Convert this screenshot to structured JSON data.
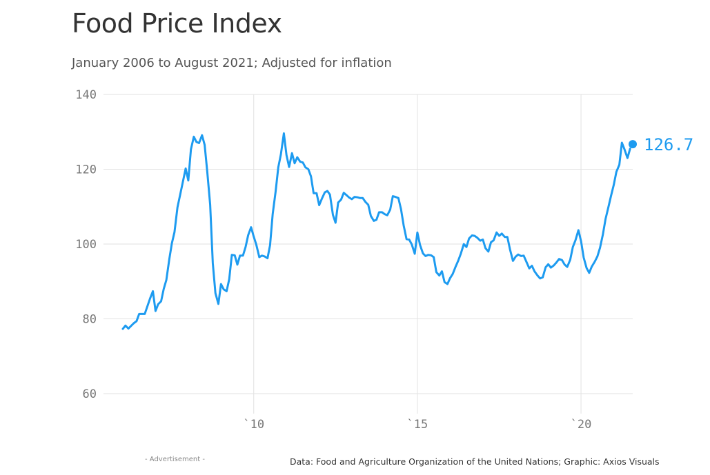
{
  "chart_data": {
    "type": "line",
    "title": "Food Price Index",
    "subtitle": "January 2006 to August 2021; Adjusted for inflation",
    "xlabel": "",
    "ylabel": "",
    "xlim": [
      2006,
      2021.75
    ],
    "ylim": [
      55,
      140
    ],
    "grid": true,
    "y_ticks": [
      60,
      80,
      100,
      120,
      140
    ],
    "x_ticks": [
      {
        "value": 2010,
        "label": "`10"
      },
      {
        "value": 2015,
        "label": "`15"
      },
      {
        "value": 2020,
        "label": "`20"
      }
    ],
    "color": "#1d9bf0",
    "end_label": "126.7",
    "series": [
      {
        "points": [
          [
            2006.0,
            77.3
          ],
          [
            2006.08,
            78.2
          ],
          [
            2006.17,
            77.4
          ],
          [
            2006.33,
            78.8
          ],
          [
            2006.42,
            79.4
          ],
          [
            2006.5,
            81.3
          ],
          [
            2006.67,
            81.3
          ],
          [
            2006.83,
            85.4
          ],
          [
            2006.92,
            87.4
          ],
          [
            2007.0,
            82.1
          ],
          [
            2007.08,
            83.9
          ],
          [
            2007.17,
            84.7
          ],
          [
            2007.25,
            88.0
          ],
          [
            2007.33,
            90.4
          ],
          [
            2007.42,
            96.0
          ],
          [
            2007.5,
            100.2
          ],
          [
            2007.58,
            103.2
          ],
          [
            2007.67,
            109.8
          ],
          [
            2007.75,
            113.1
          ],
          [
            2007.92,
            120.2
          ],
          [
            2008.0,
            117.0
          ],
          [
            2008.08,
            125.3
          ],
          [
            2008.17,
            128.7
          ],
          [
            2008.25,
            127.3
          ],
          [
            2008.33,
            127.0
          ],
          [
            2008.42,
            129.1
          ],
          [
            2008.5,
            126.5
          ],
          [
            2008.58,
            119.3
          ],
          [
            2008.67,
            110.5
          ],
          [
            2008.75,
            94.9
          ],
          [
            2008.83,
            86.9
          ],
          [
            2008.92,
            84.0
          ],
          [
            2009.0,
            89.3
          ],
          [
            2009.08,
            87.9
          ],
          [
            2009.17,
            87.4
          ],
          [
            2009.25,
            90.6
          ],
          [
            2009.33,
            97.1
          ],
          [
            2009.42,
            97.0
          ],
          [
            2009.5,
            94.5
          ],
          [
            2009.58,
            96.9
          ],
          [
            2009.67,
            96.9
          ],
          [
            2009.75,
            99.2
          ],
          [
            2009.83,
            102.4
          ],
          [
            2009.92,
            104.5
          ],
          [
            2010.0,
            102.0
          ],
          [
            2010.08,
            99.8
          ],
          [
            2010.17,
            96.5
          ],
          [
            2010.25,
            96.9
          ],
          [
            2010.33,
            96.7
          ],
          [
            2010.42,
            96.2
          ],
          [
            2010.5,
            99.7
          ],
          [
            2010.58,
            108.0
          ],
          [
            2010.67,
            114.1
          ],
          [
            2010.75,
            120.5
          ],
          [
            2010.83,
            124.0
          ],
          [
            2010.92,
            129.6
          ],
          [
            2011.0,
            123.8
          ],
          [
            2011.08,
            120.6
          ],
          [
            2011.17,
            124.3
          ],
          [
            2011.25,
            121.6
          ],
          [
            2011.33,
            123.2
          ],
          [
            2011.42,
            122.0
          ],
          [
            2011.5,
            121.8
          ],
          [
            2011.58,
            120.5
          ],
          [
            2011.67,
            120.0
          ],
          [
            2011.75,
            118.1
          ],
          [
            2011.83,
            113.6
          ],
          [
            2011.92,
            113.6
          ],
          [
            2012.0,
            110.4
          ],
          [
            2012.08,
            112.1
          ],
          [
            2012.17,
            113.8
          ],
          [
            2012.25,
            114.2
          ],
          [
            2012.33,
            113.2
          ],
          [
            2012.42,
            107.8
          ],
          [
            2012.5,
            105.7
          ],
          [
            2012.58,
            111.1
          ],
          [
            2012.67,
            111.9
          ],
          [
            2012.75,
            113.7
          ],
          [
            2012.83,
            113.1
          ],
          [
            2012.92,
            112.4
          ],
          [
            2013.0,
            112.0
          ],
          [
            2013.08,
            112.6
          ],
          [
            2013.17,
            112.5
          ],
          [
            2013.25,
            112.3
          ],
          [
            2013.33,
            112.3
          ],
          [
            2013.42,
            111.2
          ],
          [
            2013.5,
            110.5
          ],
          [
            2013.58,
            107.5
          ],
          [
            2013.67,
            106.2
          ],
          [
            2013.75,
            106.5
          ],
          [
            2013.83,
            108.5
          ],
          [
            2013.92,
            108.5
          ],
          [
            2014.0,
            108.0
          ],
          [
            2014.08,
            107.7
          ],
          [
            2014.17,
            109.2
          ],
          [
            2014.25,
            112.8
          ],
          [
            2014.33,
            112.6
          ],
          [
            2014.42,
            112.3
          ],
          [
            2014.5,
            109.3
          ],
          [
            2014.58,
            105.0
          ],
          [
            2014.67,
            101.3
          ],
          [
            2014.75,
            101.2
          ],
          [
            2014.83,
            99.9
          ],
          [
            2014.92,
            97.4
          ],
          [
            2015.0,
            103.1
          ],
          [
            2015.08,
            99.8
          ],
          [
            2015.17,
            97.5
          ],
          [
            2015.25,
            96.8
          ],
          [
            2015.33,
            97.1
          ],
          [
            2015.42,
            97.0
          ],
          [
            2015.5,
            96.5
          ],
          [
            2015.58,
            92.5
          ],
          [
            2015.67,
            91.6
          ],
          [
            2015.75,
            92.7
          ],
          [
            2015.83,
            89.8
          ],
          [
            2015.92,
            89.3
          ],
          [
            2016.0,
            90.9
          ],
          [
            2016.08,
            92.0
          ],
          [
            2016.17,
            94.0
          ],
          [
            2016.25,
            95.6
          ],
          [
            2016.33,
            97.5
          ],
          [
            2016.42,
            100.0
          ],
          [
            2016.5,
            99.2
          ],
          [
            2016.58,
            101.5
          ],
          [
            2016.67,
            102.3
          ],
          [
            2016.75,
            102.2
          ],
          [
            2016.83,
            101.7
          ],
          [
            2016.92,
            100.9
          ],
          [
            2017.0,
            101.2
          ],
          [
            2017.08,
            98.9
          ],
          [
            2017.17,
            98.0
          ],
          [
            2017.25,
            100.5
          ],
          [
            2017.33,
            101.0
          ],
          [
            2017.42,
            103.1
          ],
          [
            2017.5,
            102.2
          ],
          [
            2017.58,
            102.8
          ],
          [
            2017.67,
            101.9
          ],
          [
            2017.75,
            101.9
          ],
          [
            2017.83,
            98.6
          ],
          [
            2017.92,
            95.5
          ],
          [
            2018.0,
            96.6
          ],
          [
            2018.08,
            97.2
          ],
          [
            2018.17,
            96.8
          ],
          [
            2018.25,
            96.9
          ],
          [
            2018.33,
            95.3
          ],
          [
            2018.42,
            93.5
          ],
          [
            2018.5,
            94.2
          ],
          [
            2018.58,
            92.7
          ],
          [
            2018.67,
            91.6
          ],
          [
            2018.75,
            90.8
          ],
          [
            2018.83,
            91.1
          ],
          [
            2018.92,
            93.8
          ],
          [
            2019.0,
            94.6
          ],
          [
            2019.08,
            93.7
          ],
          [
            2019.17,
            94.3
          ],
          [
            2019.25,
            95.1
          ],
          [
            2019.33,
            96.0
          ],
          [
            2019.42,
            95.7
          ],
          [
            2019.5,
            94.5
          ],
          [
            2019.58,
            93.9
          ],
          [
            2019.67,
            95.8
          ],
          [
            2019.75,
            99.2
          ],
          [
            2019.83,
            101.0
          ],
          [
            2019.92,
            103.7
          ],
          [
            2020.0,
            100.8
          ],
          [
            2020.08,
            96.4
          ],
          [
            2020.17,
            93.6
          ],
          [
            2020.25,
            92.3
          ],
          [
            2020.33,
            94.0
          ],
          [
            2020.42,
            95.3
          ],
          [
            2020.5,
            96.7
          ],
          [
            2020.58,
            99.0
          ],
          [
            2020.67,
            102.6
          ],
          [
            2020.75,
            106.7
          ],
          [
            2020.83,
            109.6
          ],
          [
            2020.92,
            113.0
          ],
          [
            2021.0,
            115.8
          ],
          [
            2021.08,
            119.3
          ],
          [
            2021.17,
            121.2
          ],
          [
            2021.25,
            127.1
          ],
          [
            2021.33,
            125.3
          ],
          [
            2021.42,
            123.0
          ],
          [
            2021.5,
            125.5
          ]
        ]
      }
    ],
    "end_point": [
      2021.58,
      126.7
    ]
  },
  "footer": {
    "advertisement": "- Advertisement -",
    "source": "Data: Food and Agriculture Organization of the United Nations; Graphic: Axios Visuals"
  }
}
